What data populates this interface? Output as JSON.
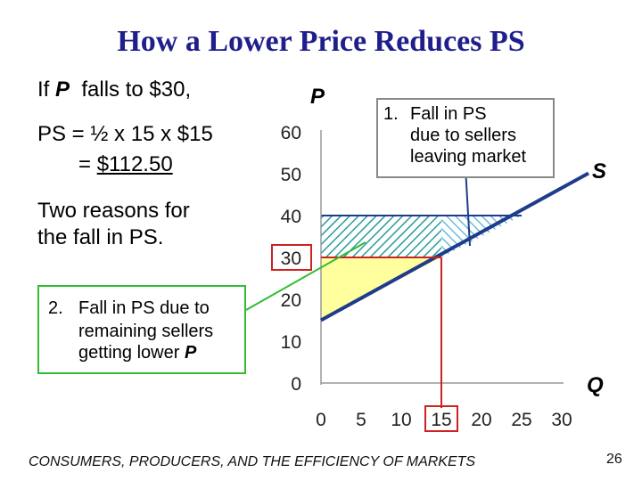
{
  "slide": {
    "title": "How a Lower Price Reduces PS",
    "line1_prefix": "If ",
    "line1_var": "P",
    "line1_suffix": "  falls to $30,",
    "line2": "PS = ½ x 15 x $15",
    "line3_prefix": "= ",
    "line3_value": "$112.50",
    "reasons_line1": "Two reasons for",
    "reasons_line2": "the fall in PS.",
    "callout1_num": "1.",
    "callout1_lines": [
      "Fall in PS",
      "due to sellers",
      "leaving market"
    ],
    "callout2_num": "2.",
    "callout2_lines": [
      "Fall in PS due to",
      "remaining sellers",
      "getting lower "
    ],
    "callout2_var": "P",
    "footer": "CONSUMERS, PRODUCERS, AND THE EFFICIENCY OF MARKETS",
    "page_number": "26"
  },
  "colors": {
    "title": "#1f1f8c",
    "supply_line": "#1f3c8c",
    "hatch": "#2a9c9c",
    "hatch_light": "#4fb0d8",
    "yellow_fill": "#ffff9e",
    "highlight_red": "#cc2222",
    "callout_border": "#33bb33",
    "axis": "#999999"
  },
  "chart_data": {
    "type": "line",
    "ylabel": "P",
    "xlabel": "Q",
    "x_ticks": [
      "0",
      "5",
      "10",
      "15",
      "20",
      "25",
      "30"
    ],
    "y_ticks": [
      "0",
      "10",
      "20",
      "30",
      "40",
      "50",
      "60"
    ],
    "xlim": [
      0,
      30
    ],
    "ylim": [
      0,
      60
    ],
    "supply": {
      "name": "S",
      "x": [
        0,
        30
      ],
      "y": [
        15,
        45
      ]
    },
    "old_price": 40,
    "new_price": 30,
    "new_quantity": 15,
    "old_quantity": 25,
    "highlighted_price_tick": "30",
    "highlighted_quantity_tick": "15"
  }
}
